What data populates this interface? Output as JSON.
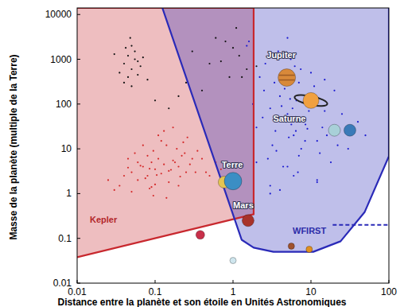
{
  "chart_data": {
    "type": "scatter",
    "log": true,
    "grid": false,
    "x_label": "Distance entre la planète et son étoile en Unités Astronomiques",
    "y_label": "Masse de  la planète (multiple de la Terre)",
    "xlim": [
      0.01,
      100
    ],
    "ylim": [
      0.01,
      14000
    ],
    "xticks": [
      0.01,
      0.1,
      1,
      10,
      100
    ],
    "yticks": [
      0.01,
      0.1,
      1,
      10,
      100,
      1000,
      10000
    ],
    "regions": [
      {
        "label": "Kepler",
        "color": "#c8282e",
        "x": [
          0.01,
          1.84,
          1.84,
          0.01
        ],
        "y": [
          0.038,
          0.345,
          14000,
          14000
        ]
      },
      {
        "label": "WFIRST",
        "color": "#2a2ab8",
        "x": [
          0.124,
          1.29,
          1.84,
          3.3,
          10.7,
          24,
          49,
          100,
          100
        ],
        "y": [
          14000,
          0.093,
          0.062,
          0.05,
          0.05,
          0.086,
          0.39,
          6.8,
          14000
        ]
      }
    ],
    "lines": [
      {
        "color": "#2a2ab8",
        "line_style": "dashed",
        "x": [
          19,
          100
        ],
        "y": [
          0.2,
          0.2
        ]
      }
    ],
    "series": [
      {
        "color": "#d42a2a",
        "marker": "dot",
        "x": [
          0.05,
          0.07,
          0.08,
          0.09,
          0.1,
          0.11,
          0.12,
          0.13,
          0.15,
          0.17,
          0.2,
          0.22,
          0.25,
          0.3,
          0.06,
          0.04,
          0.035,
          0.045,
          0.055,
          0.065,
          0.075,
          0.085,
          0.095,
          0.105,
          0.14,
          0.16,
          0.18,
          0.21,
          0.24,
          0.28,
          0.33,
          0.4,
          0.5,
          0.6,
          0.7,
          0.9,
          0.03,
          0.025,
          0.12,
          0.09,
          0.07,
          0.15,
          0.19,
          0.11,
          0.08,
          0.06,
          0.1,
          0.13,
          0.23,
          0.35,
          0.045,
          0.05,
          0.17,
          0.26,
          0.14,
          0.085,
          0.095,
          0.2,
          1.2,
          0.45
        ],
        "values": [
          3,
          4,
          2.5,
          5,
          3.5,
          6,
          2.8,
          4.5,
          3.2,
          5.5,
          4,
          7,
          3,
          6,
          2,
          2.5,
          1.5,
          3.8,
          8,
          4.2,
          2.2,
          3.6,
          9,
          2.6,
          12,
          3.4,
          5,
          2.4,
          8,
          4.5,
          3,
          6,
          2.5,
          5,
          3.5,
          2,
          1.2,
          2,
          15,
          1.4,
          12,
          1.8,
          10,
          20,
          7,
          5,
          1.6,
          25,
          14,
          9,
          6,
          1.1,
          30,
          18,
          0.8,
          1.3,
          0.9,
          1.5,
          1.8,
          3
        ]
      },
      {
        "color": "#111111",
        "marker": "dot",
        "x": [
          0.04,
          0.045,
          0.05,
          0.055,
          0.06,
          0.05,
          0.045,
          0.065,
          0.04,
          0.055,
          0.035,
          0.07,
          0.05,
          0.06,
          0.048,
          0.042,
          0.08,
          0.3,
          0.5,
          0.8,
          1.2,
          1.5,
          0.6,
          0.9,
          1.1,
          0.4,
          0.7,
          2,
          0.2,
          0.1,
          0.15,
          0.25,
          1.0,
          1.3,
          0.03
        ],
        "values": [
          800,
          1200,
          600,
          1500,
          900,
          2000,
          400,
          700,
          300,
          1000,
          500,
          1100,
          250,
          450,
          3000,
          1800,
          350,
          1500,
          800,
          2500,
          1200,
          600,
          3000,
          400,
          5000,
          200,
          900,
          700,
          150,
          120,
          80,
          300,
          1800,
          400,
          1300
        ]
      },
      {
        "color": "#1a1ad0",
        "marker": "dot",
        "x": [
          2,
          3,
          4,
          5,
          6,
          7,
          8,
          9,
          10,
          12,
          15,
          2.5,
          3.5,
          4.5,
          5.5,
          6.5,
          7.5,
          8.5,
          11,
          13,
          2.2,
          3.2,
          4.2,
          5.2,
          6.2,
          7.2,
          9.5,
          14,
          18,
          25,
          1.5,
          1.8,
          2.8,
          3.8,
          4.8,
          5.8,
          6.8,
          16,
          20,
          30,
          2.4,
          3.4,
          4.4,
          5.4,
          6.4,
          7.4,
          8.4,
          9.4,
          12,
          40,
          2.6,
          3.6,
          4.6,
          5.6,
          1.6,
          10,
          22,
          3,
          5,
          7,
          4,
          6,
          8,
          2,
          15,
          3,
          9,
          5,
          12,
          50
        ],
        "values": [
          30,
          80,
          150,
          60,
          20,
          300,
          40,
          100,
          500,
          15,
          70,
          200,
          25,
          50,
          1000,
          120,
          10,
          35,
          250,
          8,
          400,
          12,
          90,
          18,
          700,
          45,
          150,
          30,
          5,
          60,
          2000,
          100,
          6,
          1500,
          40,
          80,
          3,
          20,
          200,
          10,
          50,
          300,
          4,
          130,
          25,
          600,
          15,
          70,
          2,
          40,
          800,
          9,
          220,
          35,
          2500,
          160,
          12,
          1.5,
          3000,
          7,
          1.2,
          2.5,
          110,
          5,
          350,
          1,
          28,
          4,
          1.8,
          20
        ]
      }
    ],
    "planets": {
      "labels": [
        null,
        null,
        "Terre",
        "Mars",
        "Jupiter",
        "Saturne",
        null,
        null,
        null,
        null,
        null
      ],
      "x": [
        0.38,
        0.77,
        1,
        1.56,
        4.9,
        10,
        20,
        31.6,
        1,
        5.6,
        9.5
      ],
      "y": [
        0.12,
        1.8,
        1.9,
        0.25,
        390,
        120,
        26,
        26,
        0.032,
        0.067,
        0.057
      ],
      "colors": [
        "#c8304a",
        "#e3c452",
        "#3b8ec4",
        "#a8322a",
        "#d8893a",
        "#f0a040",
        "#a8d0d8",
        "#3a7ab8",
        "#cfe6ee",
        "#a0522d",
        "#e09020"
      ],
      "markers": [
        "small",
        "medium",
        "large",
        "medium",
        "large",
        "ringed",
        "medium",
        "medium",
        "tiny",
        "tiny",
        "tiny"
      ]
    }
  }
}
